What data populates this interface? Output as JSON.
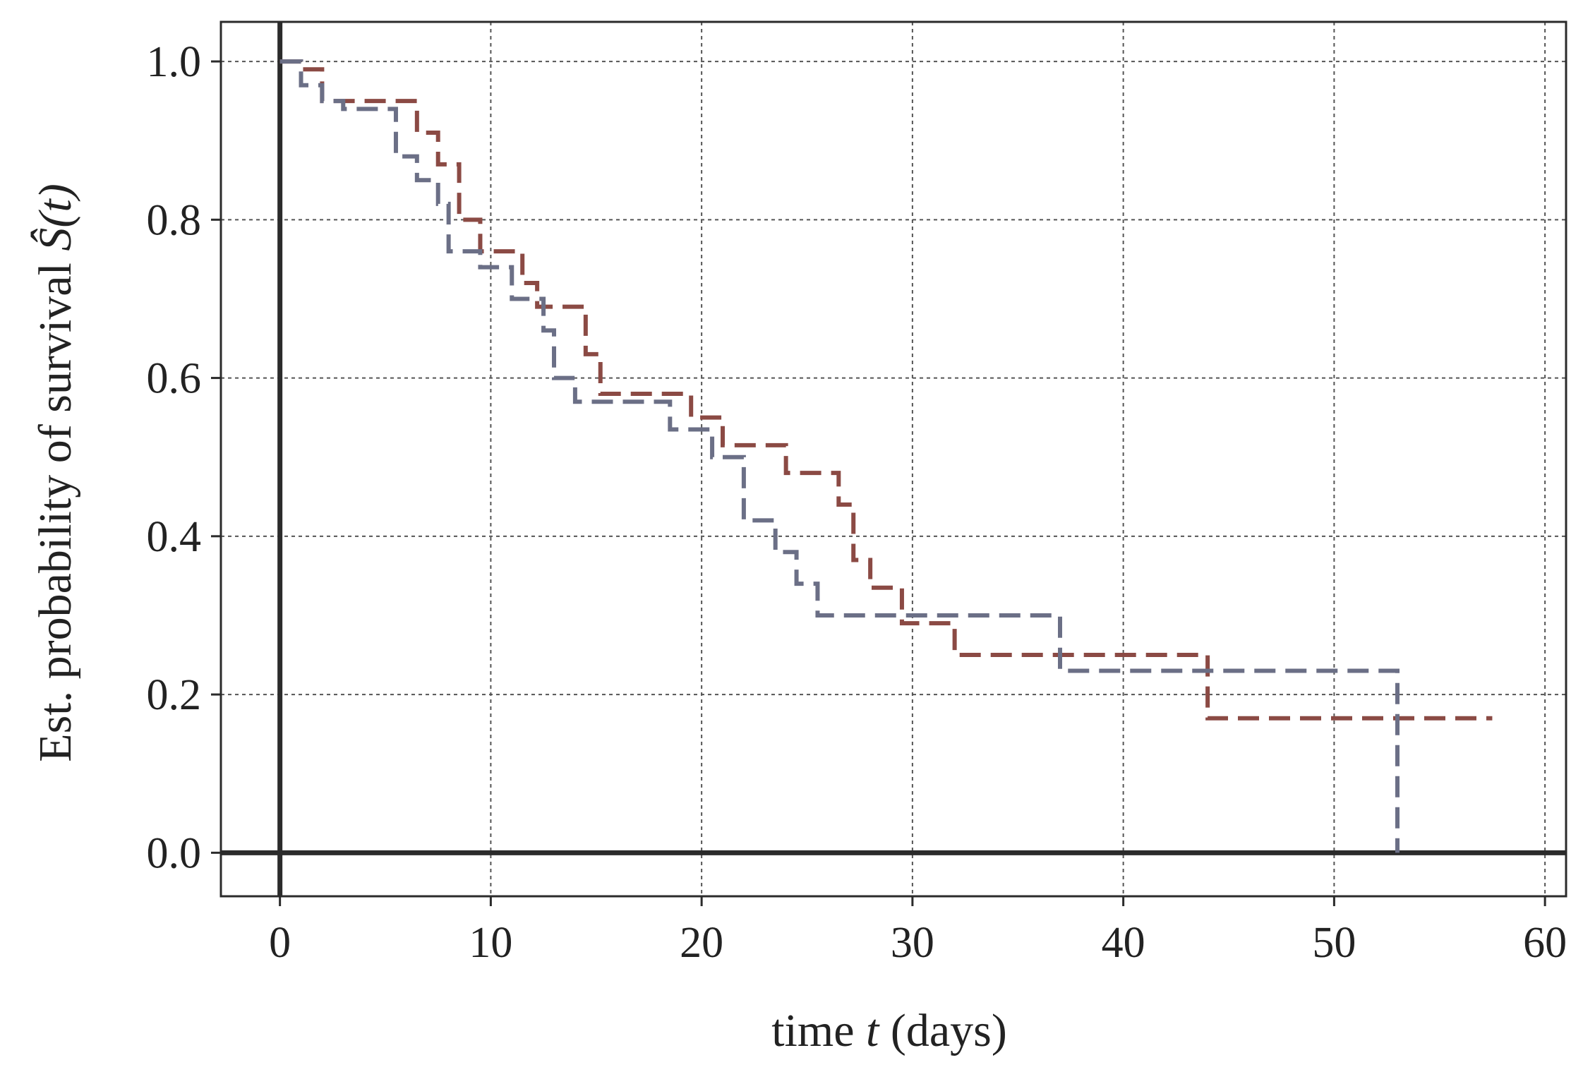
{
  "chart_data": {
    "type": "line",
    "step": true,
    "xlabel": {
      "prefix": "time ",
      "var": "t",
      "suffix": " (days)"
    },
    "ylabel": {
      "prefix": "Est. probability of survival ",
      "var": "Ŝ(t)"
    },
    "xlim": [
      -2.8,
      61
    ],
    "ylim": [
      -0.055,
      1.05
    ],
    "xticks": [
      0,
      10,
      20,
      30,
      40,
      50,
      60
    ],
    "yticks": [
      0.0,
      0.2,
      0.4,
      0.6,
      0.8,
      1.0
    ],
    "xtick_labels": [
      "0",
      "10",
      "20",
      "30",
      "40",
      "50",
      "60"
    ],
    "ytick_labels": [
      "0.0",
      "0.2",
      "0.4",
      "0.6",
      "0.8",
      "1.0"
    ],
    "grid": true,
    "reference_lines": {
      "x": 0,
      "y": 0
    },
    "series": [
      {
        "color": "#8b4a44",
        "points": [
          [
            0,
            1.0
          ],
          [
            1,
            0.99
          ],
          [
            2,
            0.95
          ],
          [
            5.5,
            0.95
          ],
          [
            6.5,
            0.91
          ],
          [
            7.5,
            0.87
          ],
          [
            8.5,
            0.8
          ],
          [
            9.5,
            0.76
          ],
          [
            11.5,
            0.72
          ],
          [
            12.2,
            0.69
          ],
          [
            14.5,
            0.63
          ],
          [
            15.2,
            0.58
          ],
          [
            19.5,
            0.55
          ],
          [
            21,
            0.515
          ],
          [
            24,
            0.48
          ],
          [
            26.5,
            0.44
          ],
          [
            27.2,
            0.37
          ],
          [
            28,
            0.335
          ],
          [
            29.5,
            0.29
          ],
          [
            32,
            0.25
          ],
          [
            44,
            0.17
          ],
          [
            57.5,
            0.17
          ]
        ]
      },
      {
        "color": "#6b6f86",
        "points": [
          [
            0,
            1.0
          ],
          [
            1,
            0.97
          ],
          [
            2,
            0.95
          ],
          [
            3,
            0.94
          ],
          [
            5.5,
            0.88
          ],
          [
            6.5,
            0.85
          ],
          [
            7.5,
            0.82
          ],
          [
            8,
            0.76
          ],
          [
            9.5,
            0.74
          ],
          [
            11,
            0.7
          ],
          [
            12.5,
            0.66
          ],
          [
            13,
            0.6
          ],
          [
            14,
            0.57
          ],
          [
            18.5,
            0.535
          ],
          [
            20.5,
            0.5
          ],
          [
            22,
            0.42
          ],
          [
            23.5,
            0.38
          ],
          [
            24.5,
            0.34
          ],
          [
            25.5,
            0.3
          ],
          [
            37,
            0.23
          ],
          [
            53,
            0.0
          ]
        ]
      }
    ]
  }
}
